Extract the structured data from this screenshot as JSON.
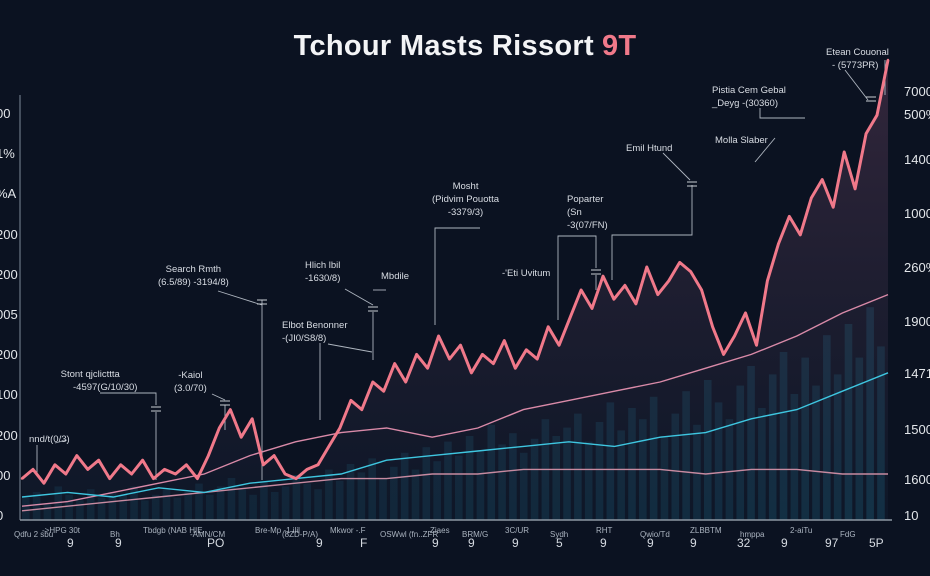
{
  "colors": {
    "background": "#0b1221",
    "price": "#f0798a",
    "ma_upper": "#d98aa8",
    "ma_lower": "#c78aa0",
    "signal": "#3ec6e0",
    "volume": "#1d6f8c",
    "axis": "#7c8693"
  },
  "chart_data": {
    "type": "line",
    "title": "Tchour Masts Rissort",
    "title_badge": "9T",
    "xlabel": "",
    "ylabel": "",
    "ylim": [
      0,
      100
    ],
    "left_ticks": [
      "0",
      "00",
      "200",
      "100",
      "200",
      "005",
      "200",
      "200",
      "%A",
      "1%",
      "00"
    ],
    "right_ticks": [
      "10",
      "1600",
      "1500",
      "1471",
      "1900",
      "260%",
      "1000",
      "1400",
      "500%",
      "7000"
    ],
    "x_tick_labels_top": [
      "Qdfu 2 sbu",
      "->HPG 30t",
      "Bh",
      "Tbdgb (NAB HIE",
      "-AMN/CM",
      "Bre-Mp -1 ilil",
      "(8ZD-P/A)",
      "Mkwor -.F",
      "OSWwl (fn..ZFR",
      "Ziaes",
      "BRM/G",
      "3C/UR",
      "Sydh",
      "RHT",
      "Qwio/Td",
      "ZLBBTM",
      "hmppa",
      "2-aiTu",
      "FdG"
    ],
    "x_tick_digits": [
      "9",
      "9",
      "PO",
      "9",
      "F",
      "9",
      "9",
      "9",
      "5",
      "9",
      "9",
      "9",
      "32",
      "9",
      "97",
      "5P"
    ],
    "series": [
      {
        "name": "price",
        "values": [
          9,
          11,
          8,
          12,
          10,
          14,
          11,
          13,
          9,
          12,
          10,
          13,
          9,
          11,
          10,
          12,
          9,
          14,
          20,
          24,
          18,
          22,
          12,
          14,
          10,
          9,
          11,
          12,
          16,
          20,
          26,
          24,
          30,
          28,
          34,
          30,
          36,
          33,
          40,
          35,
          38,
          32,
          36,
          34,
          39,
          33,
          37,
          35,
          42,
          38,
          44,
          50,
          46,
          53,
          48,
          51,
          47,
          55,
          49,
          52,
          56,
          54,
          50,
          42,
          36,
          40,
          45,
          38,
          52,
          60,
          66,
          62,
          70,
          74,
          68,
          80,
          72,
          84,
          88,
          100
        ]
      },
      {
        "name": "signal",
        "values": [
          5,
          6,
          5,
          7,
          6,
          8,
          9,
          10,
          13,
          14,
          15,
          16,
          17,
          16,
          18,
          19,
          22,
          24,
          28,
          32
        ]
      },
      {
        "name": "ma_upper",
        "values": [
          3,
          4,
          6,
          8,
          10,
          14,
          17,
          19,
          20,
          18,
          20,
          24,
          26,
          28,
          30,
          33,
          36,
          40,
          45,
          49
        ]
      },
      {
        "name": "ma_lower",
        "values": [
          2,
          3,
          4,
          5,
          6,
          7,
          8,
          9,
          9,
          10,
          10,
          11,
          11,
          11,
          11,
          10,
          11,
          11,
          10,
          10
        ]
      },
      {
        "name": "volume",
        "values": [
          8,
          10,
          6,
          12,
          9,
          7,
          11,
          8,
          10,
          9,
          12,
          7,
          9,
          11,
          8,
          10,
          13,
          9,
          12,
          15,
          11,
          9,
          14,
          10,
          12,
          16,
          13,
          11,
          18,
          14,
          20,
          17,
          22,
          15,
          19,
          24,
          18,
          26,
          21,
          28,
          23,
          30,
          25,
          34,
          27,
          31,
          24,
          29,
          36,
          30,
          33,
          38,
          28,
          35,
          42,
          32,
          40,
          36,
          44,
          30,
          38,
          46,
          34,
          50,
          42,
          36,
          48,
          55,
          40,
          52,
          60,
          45,
          58,
          48,
          66,
          52,
          70,
          58,
          76,
          62
        ]
      }
    ],
    "annotations": [
      {
        "title": "Etean Couonal",
        "sub": "- (5773PR)"
      },
      {
        "title": "Pistia Cem Gebal",
        "sub": "_Deyg -(30360)"
      },
      {
        "title": "Emil Htund"
      },
      {
        "title": "Molla Slaber"
      },
      {
        "title": "Mosht",
        "sub": "(Pidvim Pouotta",
        "sub2": "-3379/3)"
      },
      {
        "title": "Poparter",
        "sub": "(Sn",
        "sub2": "-3(07/FN)"
      },
      {
        "title": "Search Rmth",
        "sub": "(6.5/89)   -3194/8)"
      },
      {
        "title": "Hlich lbil",
        "sub": "-1630/8)"
      },
      {
        "title": "Mbdile"
      },
      {
        "title": "-'Eti Uvitum"
      },
      {
        "title": "Elbot Benonner",
        "sub": "-(JI0/S8/8)"
      },
      {
        "title": "Stont qjclicttta",
        "sub": "-4597(G/10/30)"
      },
      {
        "title": "-Kaiol",
        "sub": "(3.0/70)"
      },
      {
        "title": "nnd/t(0/3)"
      }
    ]
  }
}
